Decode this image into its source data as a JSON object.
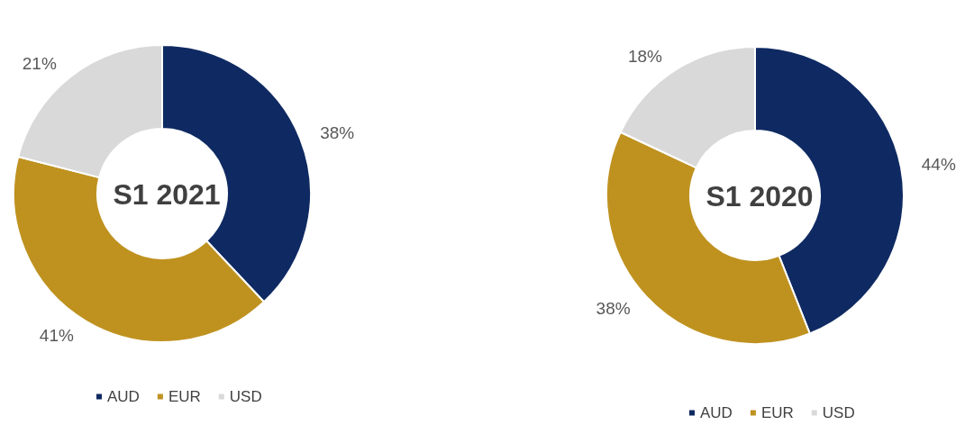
{
  "chart_data": [
    {
      "type": "donut",
      "title": "S1 2021",
      "categories": [
        "AUD",
        "EUR",
        "USD"
      ],
      "values": [
        38,
        41,
        21
      ],
      "value_labels": [
        "38%",
        "41%",
        "21%"
      ],
      "colors": [
        "#0f2a62",
        "#bf9220",
        "#d9d9d9"
      ],
      "legend": "bottom"
    },
    {
      "type": "donut",
      "title": "S1 2020",
      "categories": [
        "AUD",
        "EUR",
        "USD"
      ],
      "values": [
        44,
        38,
        18
      ],
      "value_labels": [
        "44%",
        "38%",
        "18%"
      ],
      "colors": [
        "#0f2a62",
        "#bf9220",
        "#d9d9d9"
      ],
      "legend": "bottom"
    }
  ]
}
